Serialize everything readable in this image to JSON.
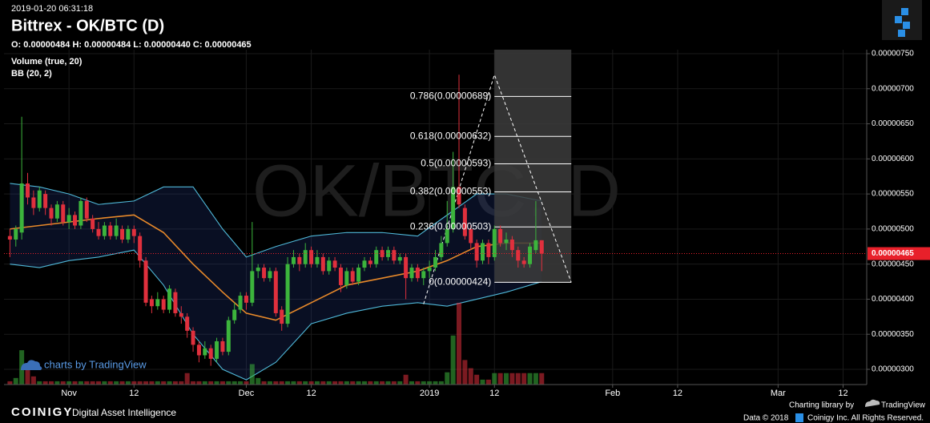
{
  "chart_data": {
    "type": "candlestick",
    "datetime": "2019-01-20 06:31:18",
    "title": "Bittrex - OK/BTC (D)",
    "ohlc_readout": "O: 0.00000484 H: 0.00000484 L: 0.00000440 C: 0.00000465",
    "watermark": "OK/BTC, D",
    "indicators": [
      "Volume (true, 20)",
      "BB (20, 2)"
    ],
    "up_color": "#3cb43c",
    "down_color": "#e0303d",
    "grid": true,
    "xlim": [
      "2018-10-21",
      "2019-03-16"
    ],
    "xticks": [
      {
        "value": "2018-11-01",
        "label": "Nov"
      },
      {
        "value": "2018-11-12",
        "label": "12"
      },
      {
        "value": "2018-12-01",
        "label": "Dec"
      },
      {
        "value": "2018-12-12",
        "label": "12"
      },
      {
        "value": "2019-01-01",
        "label": "2019"
      },
      {
        "value": "2019-01-12",
        "label": "12"
      },
      {
        "value": "2019-02-01",
        "label": "Feb"
      },
      {
        "value": "2019-02-12",
        "label": "12"
      },
      {
        "value": "2019-03-01",
        "label": "Mar"
      },
      {
        "value": "2019-03-12",
        "label": "12"
      }
    ],
    "ylim": [
      2.783e-06,
      7.557e-06
    ],
    "yticks": [
      {
        "value": 7.5e-06,
        "label": "0.00000750"
      },
      {
        "value": 7e-06,
        "label": "0.00000700"
      },
      {
        "value": 6.5e-06,
        "label": "0.00000650"
      },
      {
        "value": 6e-06,
        "label": "0.00000600"
      },
      {
        "value": 5.5e-06,
        "label": "0.00000550"
      },
      {
        "value": 5e-06,
        "label": "0.00000500"
      },
      {
        "value": 4.5e-06,
        "label": "0.00000450"
      },
      {
        "value": 4e-06,
        "label": "0.00000400"
      },
      {
        "value": 3.5e-06,
        "label": "0.00000350"
      },
      {
        "value": 3e-06,
        "label": "0.00000300"
      }
    ],
    "x": [
      "2018-10-22",
      "2018-10-23",
      "2018-10-24",
      "2018-10-25",
      "2018-10-26",
      "2018-10-27",
      "2018-10-28",
      "2018-10-29",
      "2018-10-30",
      "2018-10-31",
      "2018-11-01",
      "2018-11-02",
      "2018-11-03",
      "2018-11-04",
      "2018-11-05",
      "2018-11-06",
      "2018-11-07",
      "2018-11-08",
      "2018-11-09",
      "2018-11-10",
      "2018-11-11",
      "2018-11-12",
      "2018-11-13",
      "2018-11-14",
      "2018-11-15",
      "2018-11-16",
      "2018-11-17",
      "2018-11-18",
      "2018-11-19",
      "2018-11-20",
      "2018-11-21",
      "2018-11-22",
      "2018-11-23",
      "2018-11-24",
      "2018-11-25",
      "2018-11-26",
      "2018-11-27",
      "2018-11-28",
      "2018-11-29",
      "2018-11-30",
      "2018-12-01",
      "2018-12-02",
      "2018-12-03",
      "2018-12-04",
      "2018-12-05",
      "2018-12-06",
      "2018-12-07",
      "2018-12-08",
      "2018-12-09",
      "2018-12-10",
      "2018-12-11",
      "2018-12-12",
      "2018-12-13",
      "2018-12-14",
      "2018-12-15",
      "2018-12-16",
      "2018-12-17",
      "2018-12-18",
      "2018-12-19",
      "2018-12-20",
      "2018-12-21",
      "2018-12-22",
      "2018-12-23",
      "2018-12-24",
      "2018-12-25",
      "2018-12-26",
      "2018-12-27",
      "2018-12-28",
      "2018-12-29",
      "2018-12-30",
      "2018-12-31",
      "2019-01-01",
      "2019-01-02",
      "2019-01-03",
      "2019-01-04",
      "2019-01-05",
      "2019-01-06",
      "2019-01-07",
      "2019-01-08",
      "2019-01-09",
      "2019-01-10",
      "2019-01-11",
      "2019-01-12",
      "2019-01-13",
      "2019-01-14",
      "2019-01-15",
      "2019-01-16",
      "2019-01-17",
      "2019-01-18",
      "2019-01-19",
      "2019-01-20"
    ],
    "open": [
      4.9e-06,
      4.85e-06,
      4.95e-06,
      5.65e-06,
      5.45e-06,
      5.3e-06,
      5.5e-06,
      5.3e-06,
      5.15e-06,
      5.35e-06,
      5.1e-06,
      5.2e-06,
      5.05e-06,
      5.4e-06,
      5.15e-06,
      5e-06,
      4.9e-06,
      5.05e-06,
      4.9e-06,
      5e-06,
      4.85e-06,
      5e-06,
      4.9e-06,
      4.55e-06,
      4e-06,
      3.9e-06,
      4e-06,
      3.85e-06,
      4.1e-06,
      3.8e-06,
      3.75e-06,
      3.55e-06,
      3.35e-06,
      3.2e-06,
      3.3e-06,
      3.15e-06,
      3.4e-06,
      3.25e-06,
      3.7e-06,
      3.85e-06,
      4.05e-06,
      3.95e-06,
      4.4e-06,
      4.45e-06,
      4.3e-06,
      4.4e-06,
      3.85e-06,
      3.65e-06,
      4.5e-06,
      4.6e-06,
      4.5e-06,
      4.7e-06,
      4.5e-06,
      4.6e-06,
      4.4e-06,
      4.55e-06,
      4.45e-06,
      4.2e-06,
      4.4e-06,
      4.25e-06,
      4.45e-06,
      4.55e-06,
      4.5e-06,
      4.7e-06,
      4.6e-06,
      4.7e-06,
      4.55e-06,
      4.6e-06,
      4.3e-06,
      4.45e-06,
      4.3e-06,
      4.4e-06,
      4.45e-06,
      4.6e-06,
      4.8e-06,
      5e-06,
      5.6e-06,
      5.3e-06,
      5e-06,
      4.8e-06,
      4.55e-06,
      4.8e-06,
      4.6e-06,
      5e-06,
      4.8e-06,
      4.85e-06,
      4.7e-06,
      4.55e-06,
      4.5e-06,
      4.7e-06,
      4.84e-06
    ],
    "high": [
      5e-06,
      5.05e-06,
      6.6e-06,
      5.8e-06,
      5.55e-06,
      5.6e-06,
      5.55e-06,
      5.35e-06,
      5.4e-06,
      5.4e-06,
      5.3e-06,
      5.25e-06,
      5.45e-06,
      5.45e-06,
      5.2e-06,
      5.1e-06,
      5.1e-06,
      5.1e-06,
      5.15e-06,
      5.05e-06,
      5.05e-06,
      5.05e-06,
      4.95e-06,
      4.6e-06,
      4.05e-06,
      4.1e-06,
      4.05e-06,
      4.2e-06,
      4.15e-06,
      3.9e-06,
      3.8e-06,
      3.6e-06,
      3.4e-06,
      3.4e-06,
      3.35e-06,
      3.45e-06,
      3.45e-06,
      3.75e-06,
      3.95e-06,
      4.1e-06,
      4.1e-06,
      5.1e-06,
      4.5e-06,
      4.5e-06,
      4.45e-06,
      4.45e-06,
      3.9e-06,
      4.6e-06,
      4.7e-06,
      4.65e-06,
      4.8e-06,
      4.75e-06,
      4.7e-06,
      4.65e-06,
      4.6e-06,
      4.6e-06,
      4.5e-06,
      4.45e-06,
      4.45e-06,
      4.5e-06,
      4.6e-06,
      4.6e-06,
      4.75e-06,
      4.75e-06,
      4.75e-06,
      4.75e-06,
      4.65e-06,
      4.65e-06,
      4.5e-06,
      4.5e-06,
      4.45e-06,
      4.55e-06,
      4.7e-06,
      4.9e-06,
      5.4e-06,
      6.1e-06,
      7.2e-06,
      5.35e-06,
      5.05e-06,
      4.85e-06,
      4.85e-06,
      4.85e-06,
      5.05e-06,
      5.05e-06,
      4.95e-06,
      4.9e-06,
      4.75e-06,
      4.6e-06,
      4.8e-06,
      5.4e-06,
      4.84e-06
    ],
    "low": [
      4.6e-06,
      4.75e-06,
      4.85e-06,
      5.35e-06,
      5.2e-06,
      5.25e-06,
      5.2e-06,
      5.05e-06,
      5.1e-06,
      5.05e-06,
      5e-06,
      5e-06,
      5e-06,
      5.1e-06,
      4.95e-06,
      4.85e-06,
      4.85e-06,
      4.85e-06,
      4.85e-06,
      4.8e-06,
      4.8e-06,
      4.8e-06,
      4.45e-06,
      3.9e-06,
      3.8e-06,
      3.85e-06,
      3.8e-06,
      3.8e-06,
      3.75e-06,
      3.65e-06,
      3.45e-06,
      3.25e-06,
      3.1e-06,
      3.15e-06,
      3.05e-06,
      3.1e-06,
      3.2e-06,
      3.2e-06,
      3.65e-06,
      3.8e-06,
      3.85e-06,
      3.9e-06,
      4.3e-06,
      4.25e-06,
      4.25e-06,
      3.75e-06,
      3.55e-06,
      3.6e-06,
      4.45e-06,
      4.4e-06,
      4.45e-06,
      4.45e-06,
      4.45e-06,
      4.35e-06,
      4.35e-06,
      4.4e-06,
      4.1e-06,
      4.15e-06,
      4.2e-06,
      4.2e-06,
      4.4e-06,
      4.45e-06,
      4.45e-06,
      4.55e-06,
      4.55e-06,
      4.5e-06,
      4.5e-06,
      4e-06,
      4.25e-06,
      4.25e-06,
      4.2e-06,
      4.3e-06,
      4.4e-06,
      4.55e-06,
      4.75e-06,
      4.95e-06,
      5.3e-06,
      4.85e-06,
      4.7e-06,
      4.45e-06,
      4.5e-06,
      4.5e-06,
      4.55e-06,
      4.75e-06,
      4.7e-06,
      4.6e-06,
      4.45e-06,
      4.45e-06,
      4.45e-06,
      4.65e-06,
      4.4e-06
    ],
    "close": [
      4.85e-06,
      5e-06,
      5.65e-06,
      5.45e-06,
      5.3e-06,
      5.55e-06,
      5.3e-06,
      5.15e-06,
      5.35e-06,
      5.1e-06,
      5.2e-06,
      5.05e-06,
      5.4e-06,
      5.15e-06,
      5e-06,
      4.9e-06,
      5.05e-06,
      4.9e-06,
      5.05e-06,
      4.85e-06,
      5e-06,
      4.9e-06,
      4.55e-06,
      3.95e-06,
      3.9e-06,
      4e-06,
      3.85e-06,
      4.15e-06,
      3.8e-06,
      3.75e-06,
      3.55e-06,
      3.35e-06,
      3.2e-06,
      3.3e-06,
      3.15e-06,
      3.4e-06,
      3.25e-06,
      3.7e-06,
      3.85e-06,
      4.05e-06,
      3.95e-06,
      4.4e-06,
      4.45e-06,
      4.3e-06,
      4.4e-06,
      3.8e-06,
      3.65e-06,
      4.5e-06,
      4.6e-06,
      4.5e-06,
      4.7e-06,
      4.5e-06,
      4.6e-06,
      4.4e-06,
      4.55e-06,
      4.45e-06,
      4.2e-06,
      4.4e-06,
      4.25e-06,
      4.45e-06,
      4.55e-06,
      4.5e-06,
      4.7e-06,
      4.6e-06,
      4.7e-06,
      4.55e-06,
      4.6e-06,
      4.3e-06,
      4.45e-06,
      4.3e-06,
      4.4e-06,
      4.45e-06,
      4.6e-06,
      4.8e-06,
      5e-06,
      5.6e-06,
      5.35e-06,
      4.9e-06,
      4.8e-06,
      4.55e-06,
      4.8e-06,
      4.6e-06,
      5e-06,
      4.8e-06,
      4.85e-06,
      4.7e-06,
      4.55e-06,
      4.5e-06,
      4.75e-06,
      4.84e-06,
      4.65e-06
    ],
    "volume": [
      4,
      8,
      42,
      20,
      10,
      4,
      4,
      4,
      4,
      4,
      4,
      4,
      4,
      4,
      4,
      4,
      4,
      4,
      4,
      4,
      4,
      4,
      4,
      4,
      4,
      4,
      4,
      4,
      4,
      4,
      14,
      4,
      4,
      4,
      4,
      4,
      4,
      4,
      4,
      4,
      4,
      25,
      8,
      4,
      4,
      4,
      4,
      4,
      4,
      4,
      4,
      4,
      4,
      4,
      4,
      4,
      4,
      4,
      4,
      4,
      4,
      4,
      4,
      4,
      4,
      4,
      4,
      12,
      4,
      4,
      4,
      4,
      4,
      4,
      15,
      60,
      100,
      30,
      20,
      12,
      6,
      6,
      14,
      14,
      14,
      14,
      14,
      14,
      14,
      14,
      14
    ],
    "bands": {
      "x": [
        "2018-10-22",
        "2018-10-27",
        "2018-11-01",
        "2018-11-06",
        "2018-11-12",
        "2018-11-17",
        "2018-11-22",
        "2018-11-27",
        "2018-12-01",
        "2018-12-06",
        "2018-12-12",
        "2018-12-18",
        "2018-12-24",
        "2018-12-30",
        "2019-01-04",
        "2019-01-09",
        "2019-01-14",
        "2019-01-20"
      ],
      "upper": [
        5.65e-06,
        5.6e-06,
        5.5e-06,
        5.35e-06,
        5.4e-06,
        5.6e-06,
        5.6e-06,
        5e-06,
        4.6e-06,
        4.75e-06,
        4.9e-06,
        4.95e-06,
        4.95e-06,
        4.9e-06,
        5.2e-06,
        5.5e-06,
        5.5e-06,
        5.4e-06
      ],
      "basis": [
        5e-06,
        5.05e-06,
        5.1e-06,
        5.15e-06,
        5.2e-06,
        4.95e-06,
        4.5e-06,
        4.1e-06,
        3.8e-06,
        3.7e-06,
        3.95e-06,
        4.2e-06,
        4.3e-06,
        4.4e-06,
        4.55e-06,
        4.75e-06,
        4.8e-06,
        4.8e-06
      ],
      "lower": [
        4.5e-06,
        4.45e-06,
        4.55e-06,
        4.6e-06,
        4.7e-06,
        4.2e-06,
        3.5e-06,
        3e-06,
        2.85e-06,
        3.1e-06,
        3.65e-06,
        3.8e-06,
        3.9e-06,
        3.95e-06,
        3.9e-06,
        4e-06,
        4.1e-06,
        4.25e-06
      ],
      "band_color": "#4fb8d8",
      "basis_color": "#e8892a"
    },
    "fib": {
      "x": [
        "2019-01-12",
        "2019-01-25"
      ],
      "levels": [
        {
          "value": 6.89e-06,
          "label": "0.786(0.00000689)"
        },
        {
          "value": 6.32e-06,
          "label": "0.618(0.00000632)"
        },
        {
          "value": 5.93e-06,
          "label": "0.5(0.00000593)"
        },
        {
          "value": 5.53e-06,
          "label": "0.382(0.00000553)"
        },
        {
          "value": 5.03e-06,
          "label": "0.236(0.00000503)"
        },
        {
          "value": 4.24e-06,
          "label": "0(0.00000424)"
        }
      ],
      "trend": {
        "x": [
          "2018-12-31",
          "2019-01-12",
          "2019-01-25"
        ],
        "values": [
          3.93e-06,
          7.2e-06,
          4.24e-06
        ]
      }
    },
    "last_price": {
      "value": 4.65e-06,
      "label": "0.00000465"
    },
    "last_color": "#e8202a"
  },
  "branding": {
    "charts_by": "charts by TradingView",
    "logo_name": "COINIGY",
    "tagline": "Digital Asset Intelligence",
    "library_by": "Charting library by",
    "library_name": "TradingView",
    "copyright_year": "Data © 2018",
    "copyright_holder": "Coinigy Inc. All Rights Reserved."
  }
}
